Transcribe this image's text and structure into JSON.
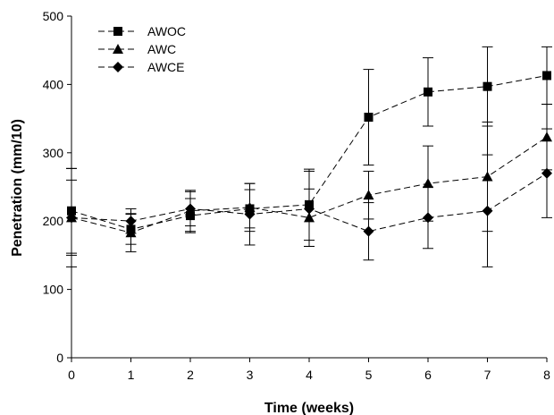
{
  "chart_data": {
    "type": "line",
    "title": "",
    "xlabel": "Time (weeks)",
    "ylabel": "Penetration (mm/10)",
    "x": [
      0,
      1,
      2,
      3,
      4,
      5,
      6,
      7,
      8
    ],
    "xlim": [
      0,
      8
    ],
    "ylim": [
      0,
      500
    ],
    "xticks": [
      0,
      1,
      2,
      3,
      4,
      5,
      6,
      7,
      8
    ],
    "yticks": [
      0,
      100,
      200,
      300,
      400,
      500
    ],
    "grid": false,
    "legend_position": "top-left",
    "line_style": "dashed",
    "series": [
      {
        "name": "AWOC",
        "marker": "square",
        "values": [
          215,
          188,
          208,
          218,
          224,
          352,
          389,
          397,
          413
        ],
        "error": [
          62,
          22,
          25,
          28,
          52,
          70,
          50,
          58,
          42
        ]
      },
      {
        "name": "AWC",
        "marker": "triangle",
        "values": [
          205,
          183,
          215,
          220,
          205,
          238,
          255,
          265,
          323
        ],
        "error": [
          72,
          28,
          30,
          35,
          42,
          35,
          55,
          80,
          48
        ]
      },
      {
        "name": "AWCE",
        "marker": "diamond",
        "values": [
          205,
          200,
          218,
          210,
          218,
          185,
          205,
          215,
          270
        ],
        "error": [
          55,
          18,
          25,
          45,
          55,
          42,
          45,
          82,
          65
        ]
      }
    ]
  }
}
